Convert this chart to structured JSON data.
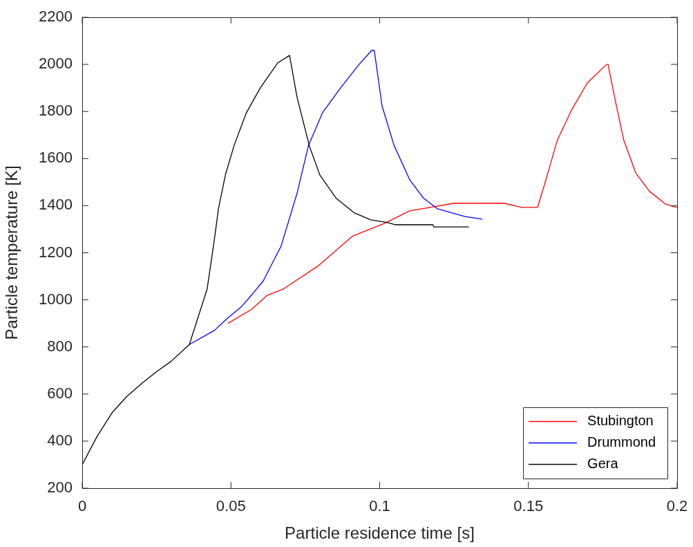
{
  "chart_data": {
    "type": "line",
    "xlabel": "Particle residence time [s]",
    "ylabel": "Particle temperature [K]",
    "xlim": [
      0,
      0.2
    ],
    "xticks": [
      0,
      0.05,
      0.1,
      0.15,
      0.2
    ],
    "ylim": [
      200,
      2200
    ],
    "yticks": [
      200,
      400,
      600,
      800,
      1000,
      1200,
      1400,
      1600,
      1800,
      2000,
      2200
    ],
    "grid": false,
    "legend": "bottom right",
    "marker": "none",
    "line_style": "solid",
    "series": [
      {
        "name": "Stubington",
        "color": "#ff0000",
        "x": [
          0.049,
          0.0569,
          0.0623,
          0.0676,
          0.0792,
          0.0908,
          0.1017,
          0.1101,
          0.1156,
          0.1249,
          0.1419,
          0.1477,
          0.1531,
          0.1559,
          0.1597,
          0.1644,
          0.1698,
          0.1763,
          0.1768,
          0.1791,
          0.1821,
          0.1861,
          0.1907,
          0.1961,
          0.2
        ],
        "values": [
          900,
          959,
          1020,
          1046,
          1143,
          1270,
          1325,
          1378,
          1390,
          1410,
          1410,
          1393,
          1393,
          1510,
          1677,
          1803,
          1921,
          2000,
          2000,
          1853,
          1677,
          1539,
          1461,
          1407,
          1392
        ]
      },
      {
        "name": "Drummond",
        "color": "#0000ff",
        "x": [
          0.036,
          0.0444,
          0.0487,
          0.0536,
          0.0569,
          0.0609,
          0.0657,
          0.0668,
          0.0722,
          0.0761,
          0.0808,
          0.0869,
          0.0931,
          0.0973,
          0.0982,
          0.1008,
          0.1048,
          0.1101,
          0.1148,
          0.1194,
          0.1287,
          0.1345
        ],
        "values": [
          810,
          870,
          920,
          972,
          1020,
          1081,
          1200,
          1226,
          1451,
          1657,
          1795,
          1901,
          2000,
          2059,
          2059,
          1824,
          1657,
          1510,
          1431,
          1387,
          1354,
          1343
        ]
      },
      {
        "name": "Gera",
        "color": "#000000",
        "x": [
          0,
          0.005,
          0.01,
          0.015,
          0.02,
          0.025,
          0.03,
          0.036,
          0.042,
          0.0444,
          0.0458,
          0.0482,
          0.0511,
          0.0551,
          0.0599,
          0.0657,
          0.0697,
          0.0722,
          0.0764,
          0.0799,
          0.0854,
          0.0915,
          0.097,
          0.1024,
          0.1052,
          0.1179,
          0.1182,
          0.13
        ],
        "values": [
          300,
          420,
          520,
          590,
          645,
          695,
          740,
          810,
          1046,
          1253,
          1387,
          1534,
          1657,
          1792,
          1901,
          2006,
          2038,
          1862,
          1652,
          1530,
          1431,
          1369,
          1340,
          1329,
          1319,
          1319,
          1310,
          1310
        ]
      }
    ]
  }
}
